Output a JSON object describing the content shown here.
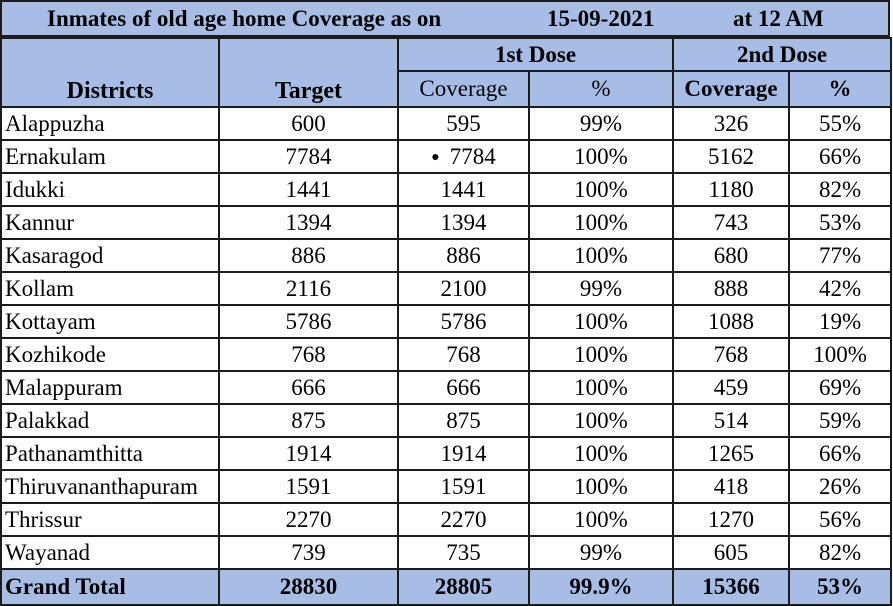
{
  "title": {
    "heading": "Inmates of old age home  Coverage as on",
    "date": "15-09-2021",
    "time": "at 12 AM"
  },
  "headers": {
    "districts": "Districts",
    "target": "Target",
    "dose1": "1st Dose",
    "dose2": "2nd Dose",
    "coverage1": "Coverage",
    "pct1": "%",
    "coverage2": "Coverage",
    "pct2": "%"
  },
  "rows": [
    {
      "district": "Alappuzha",
      "target": "600",
      "cov1": "595",
      "pct1": "99%",
      "cov2": "326",
      "pct2": "55%"
    },
    {
      "district": "Ernakulam",
      "target": "7784",
      "cov1": "7784",
      "pct1": "100%",
      "cov2": "5162",
      "pct2": "66%"
    },
    {
      "district": "Idukki",
      "target": "1441",
      "cov1": "1441",
      "pct1": "100%",
      "cov2": "1180",
      "pct2": "82%"
    },
    {
      "district": "Kannur",
      "target": "1394",
      "cov1": "1394",
      "pct1": "100%",
      "cov2": "743",
      "pct2": "53%"
    },
    {
      "district": "Kasaragod",
      "target": "886",
      "cov1": "886",
      "pct1": "100%",
      "cov2": "680",
      "pct2": "77%"
    },
    {
      "district": "Kollam",
      "target": "2116",
      "cov1": "2100",
      "pct1": "99%",
      "cov2": "888",
      "pct2": "42%"
    },
    {
      "district": "Kottayam",
      "target": "5786",
      "cov1": "5786",
      "pct1": "100%",
      "cov2": "1088",
      "pct2": "19%"
    },
    {
      "district": "Kozhikode",
      "target": "768",
      "cov1": "768",
      "pct1": "100%",
      "cov2": "768",
      "pct2": "100%"
    },
    {
      "district": "Malappuram",
      "target": "666",
      "cov1": "666",
      "pct1": "100%",
      "cov2": "459",
      "pct2": "69%"
    },
    {
      "district": "Palakkad",
      "target": "875",
      "cov1": "875",
      "pct1": "100%",
      "cov2": "514",
      "pct2": "59%"
    },
    {
      "district": "Pathanamthitta",
      "target": "1914",
      "cov1": "1914",
      "pct1": "100%",
      "cov2": "1265",
      "pct2": "66%"
    },
    {
      "district": "Thiruvananthapuram",
      "target": "1591",
      "cov1": "1591",
      "pct1": "100%",
      "cov2": "418",
      "pct2": "26%"
    },
    {
      "district": "Thrissur",
      "target": "2270",
      "cov1": "2270",
      "pct1": "100%",
      "cov2": "1270",
      "pct2": "56%"
    },
    {
      "district": "Wayanad",
      "target": "739",
      "cov1": "735",
      "pct1": "99%",
      "cov2": "605",
      "pct2": "82%"
    }
  ],
  "total": {
    "label": "Grand Total",
    "target": "28830",
    "cov1": "28805",
    "pct1": "99.9%",
    "cov2": "15366",
    "pct2": "53%"
  },
  "colors": {
    "header_fill": "#a7bde6",
    "border": "#1c1c1c"
  }
}
